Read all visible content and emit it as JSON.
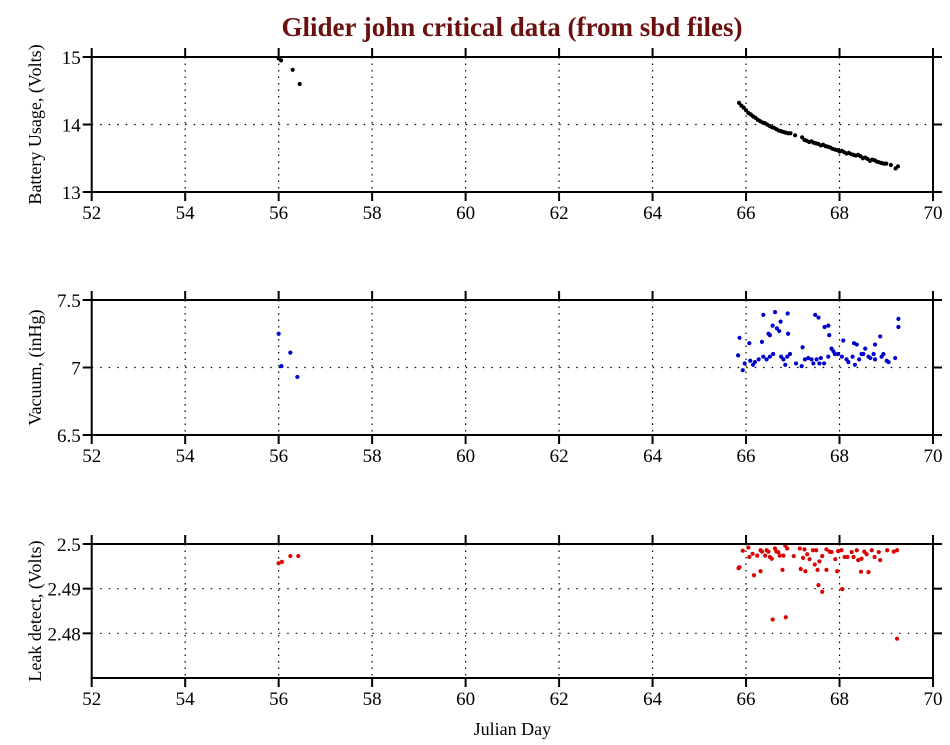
{
  "chart_data": [
    {
      "type": "scatter",
      "title": "Glider john critical data (from sbd files)",
      "title_color": "#6b0f0f",
      "ylabel": "Battery Usage, (Volts)",
      "xlabel": "",
      "xlim": [
        52,
        70
      ],
      "ylim": [
        13,
        15
      ],
      "xticks": [
        52,
        54,
        56,
        58,
        60,
        62,
        64,
        66,
        68,
        70
      ],
      "yticks": [
        13,
        14,
        15
      ],
      "ytick_labels": [
        "13",
        "14",
        "15"
      ],
      "grid": true,
      "color": "#000000",
      "points": [
        [
          56.0,
          14.98
        ],
        [
          56.05,
          14.95
        ],
        [
          56.3,
          14.81
        ],
        [
          56.45,
          14.6
        ],
        [
          65.85,
          14.32
        ],
        [
          65.9,
          14.28
        ],
        [
          65.95,
          14.25
        ],
        [
          66.0,
          14.21
        ],
        [
          66.05,
          14.17
        ],
        [
          66.1,
          14.15
        ],
        [
          66.15,
          14.12
        ],
        [
          66.2,
          14.1
        ],
        [
          66.25,
          14.07
        ],
        [
          66.3,
          14.05
        ],
        [
          66.35,
          14.03
        ],
        [
          66.4,
          14.02
        ],
        [
          66.45,
          14.0
        ],
        [
          66.5,
          13.98
        ],
        [
          66.55,
          13.96
        ],
        [
          66.6,
          13.95
        ],
        [
          66.65,
          13.93
        ],
        [
          66.7,
          13.91
        ],
        [
          66.75,
          13.9
        ],
        [
          66.8,
          13.89
        ],
        [
          66.85,
          13.88
        ],
        [
          66.9,
          13.87
        ],
        [
          66.95,
          13.87
        ],
        [
          67.05,
          13.84
        ],
        [
          67.2,
          13.81
        ],
        [
          67.25,
          13.77
        ],
        [
          67.3,
          13.76
        ],
        [
          67.35,
          13.74
        ],
        [
          67.4,
          13.75
        ],
        [
          67.45,
          13.73
        ],
        [
          67.5,
          13.72
        ],
        [
          67.55,
          13.71
        ],
        [
          67.6,
          13.69
        ],
        [
          67.65,
          13.7
        ],
        [
          67.7,
          13.68
        ],
        [
          67.75,
          13.67
        ],
        [
          67.8,
          13.66
        ],
        [
          67.85,
          13.64
        ],
        [
          67.9,
          13.63
        ],
        [
          67.95,
          13.62
        ],
        [
          68.0,
          13.6
        ],
        [
          68.05,
          13.61
        ],
        [
          68.1,
          13.59
        ],
        [
          68.15,
          13.57
        ],
        [
          68.2,
          13.58
        ],
        [
          68.25,
          13.56
        ],
        [
          68.3,
          13.55
        ],
        [
          68.35,
          13.54
        ],
        [
          68.4,
          13.55
        ],
        [
          68.45,
          13.53
        ],
        [
          68.5,
          13.5
        ],
        [
          68.55,
          13.51
        ],
        [
          68.6,
          13.49
        ],
        [
          68.65,
          13.46
        ],
        [
          68.7,
          13.48
        ],
        [
          68.75,
          13.47
        ],
        [
          68.8,
          13.45
        ],
        [
          68.85,
          13.44
        ],
        [
          68.9,
          13.43
        ],
        [
          68.95,
          13.42
        ],
        [
          69.0,
          13.42
        ],
        [
          69.1,
          13.4
        ],
        [
          69.2,
          13.35
        ],
        [
          69.25,
          13.38
        ]
      ]
    },
    {
      "type": "scatter",
      "ylabel": "Vacuum, (inHg)",
      "xlabel": "",
      "xlim": [
        52,
        70
      ],
      "ylim": [
        6.5,
        7.5
      ],
      "xticks": [
        52,
        54,
        56,
        58,
        60,
        62,
        64,
        66,
        68,
        70
      ],
      "yticks": [
        6.5,
        7,
        7.5
      ],
      "ytick_labels": [
        "6.5",
        "7",
        "7.5"
      ],
      "grid": true,
      "color": "#0000cc",
      "points": [
        [
          56.0,
          7.25
        ],
        [
          56.06,
          7.01
        ],
        [
          56.25,
          7.11
        ],
        [
          56.4,
          6.93
        ],
        [
          65.86,
          7.22
        ],
        [
          65.83,
          7.09
        ],
        [
          65.93,
          6.98
        ],
        [
          65.97,
          7.03
        ],
        [
          66.07,
          7.18
        ],
        [
          66.09,
          7.05
        ],
        [
          66.15,
          7.02
        ],
        [
          66.19,
          7.04
        ],
        [
          66.27,
          7.06
        ],
        [
          66.34,
          7.19
        ],
        [
          66.37,
          7.08
        ],
        [
          66.37,
          7.39
        ],
        [
          66.44,
          7.06
        ],
        [
          66.48,
          7.25
        ],
        [
          66.51,
          7.24
        ],
        [
          66.51,
          7.08
        ],
        [
          66.57,
          7.31
        ],
        [
          66.58,
          7.1
        ],
        [
          66.62,
          7.41
        ],
        [
          66.66,
          7.29
        ],
        [
          66.71,
          7.27
        ],
        [
          66.74,
          7.34
        ],
        [
          66.75,
          7.08
        ],
        [
          66.8,
          7.06
        ],
        [
          66.84,
          7.02
        ],
        [
          66.88,
          7.08
        ],
        [
          66.89,
          7.4
        ],
        [
          66.9,
          7.25
        ],
        [
          66.94,
          7.1
        ],
        [
          67.07,
          7.03
        ],
        [
          67.19,
          7.01
        ],
        [
          67.21,
          7.15
        ],
        [
          67.26,
          7.06
        ],
        [
          67.33,
          7.07
        ],
        [
          67.4,
          7.06
        ],
        [
          67.44,
          7.03
        ],
        [
          67.48,
          7.39
        ],
        [
          67.55,
          7.37
        ],
        [
          67.51,
          7.06
        ],
        [
          67.6,
          7.07
        ],
        [
          67.57,
          7.03
        ],
        [
          67.67,
          7.03
        ],
        [
          67.68,
          7.3
        ],
        [
          67.76,
          7.31
        ],
        [
          67.76,
          7.08
        ],
        [
          67.78,
          7.24
        ],
        [
          67.83,
          7.14
        ],
        [
          67.87,
          7.12
        ],
        [
          67.9,
          7.1
        ],
        [
          67.97,
          7.1
        ],
        [
          68.05,
          7.08
        ],
        [
          68.08,
          7.2
        ],
        [
          68.15,
          7.06
        ],
        [
          68.19,
          7.04
        ],
        [
          68.28,
          7.08
        ],
        [
          68.31,
          7.18
        ],
        [
          68.33,
          7.02
        ],
        [
          68.37,
          7.17
        ],
        [
          68.42,
          7.06
        ],
        [
          68.47,
          7.1
        ],
        [
          68.51,
          7.1
        ],
        [
          68.55,
          7.14
        ],
        [
          68.62,
          7.08
        ],
        [
          68.66,
          7.07
        ],
        [
          68.73,
          7.1
        ],
        [
          68.76,
          7.06
        ],
        [
          68.76,
          7.17
        ],
        [
          68.87,
          7.23
        ],
        [
          68.9,
          7.08
        ],
        [
          68.94,
          7.1
        ],
        [
          69.01,
          7.05
        ],
        [
          69.05,
          7.04
        ],
        [
          69.19,
          7.07
        ],
        [
          69.26,
          7.36
        ],
        [
          69.26,
          7.3
        ]
      ]
    },
    {
      "type": "scatter",
      "ylabel": "Leak detect, (Volts)",
      "xlabel": "Julian Day",
      "xlim": [
        52,
        70
      ],
      "ylim": [
        2.47,
        2.5
      ],
      "xticks": [
        52,
        54,
        56,
        58,
        60,
        62,
        64,
        66,
        68,
        70
      ],
      "yticks": [
        2.48,
        2.49,
        2.5
      ],
      "ytick_labels": [
        "2.48",
        "2.49",
        "2.5"
      ],
      "grid": true,
      "color": "#dd0000",
      "points": [
        [
          56.0,
          2.4957
        ],
        [
          56.07,
          2.496
        ],
        [
          56.25,
          2.4973
        ],
        [
          56.42,
          2.4973
        ],
        [
          65.84,
          2.4946
        ],
        [
          65.86,
          2.4948
        ],
        [
          65.93,
          2.4985
        ],
        [
          66.05,
          2.4992
        ],
        [
          66.07,
          2.4971
        ],
        [
          66.14,
          2.4978
        ],
        [
          66.17,
          2.493
        ],
        [
          66.24,
          2.4974
        ],
        [
          66.31,
          2.4986
        ],
        [
          66.31,
          2.4939
        ],
        [
          66.34,
          2.4983
        ],
        [
          66.41,
          2.4974
        ],
        [
          66.44,
          2.4986
        ],
        [
          66.48,
          2.4983
        ],
        [
          66.51,
          2.4971
        ],
        [
          66.55,
          2.4967
        ],
        [
          66.57,
          2.4831
        ],
        [
          66.62,
          2.499
        ],
        [
          66.65,
          2.4983
        ],
        [
          66.69,
          2.4982
        ],
        [
          66.72,
          2.4974
        ],
        [
          66.78,
          2.4942
        ],
        [
          66.8,
          2.4974
        ],
        [
          66.84,
          2.4996
        ],
        [
          66.85,
          2.4836
        ],
        [
          66.88,
          2.499
        ],
        [
          67.02,
          2.4973
        ],
        [
          67.15,
          2.499
        ],
        [
          67.17,
          2.4944
        ],
        [
          67.22,
          2.4969
        ],
        [
          67.25,
          2.4988
        ],
        [
          67.27,
          2.4939
        ],
        [
          67.31,
          2.4977
        ],
        [
          67.36,
          2.4966
        ],
        [
          67.43,
          2.4986
        ],
        [
          67.47,
          2.4954
        ],
        [
          67.5,
          2.4986
        ],
        [
          67.53,
          2.4942
        ],
        [
          67.55,
          2.4908
        ],
        [
          67.57,
          2.4961
        ],
        [
          67.63,
          2.4893
        ],
        [
          67.63,
          2.4973
        ],
        [
          67.72,
          2.4988
        ],
        [
          67.72,
          2.4942
        ],
        [
          67.79,
          2.4983
        ],
        [
          67.83,
          2.4982
        ],
        [
          67.91,
          2.4966
        ],
        [
          67.95,
          2.4939
        ],
        [
          67.97,
          2.4984
        ],
        [
          68.04,
          2.4986
        ],
        [
          68.06,
          2.4899
        ],
        [
          68.11,
          2.4971
        ],
        [
          68.17,
          2.4971
        ],
        [
          68.26,
          2.4982
        ],
        [
          68.3,
          2.4971
        ],
        [
          68.37,
          2.4986
        ],
        [
          68.4,
          2.4964
        ],
        [
          68.46,
          2.4938
        ],
        [
          68.47,
          2.4967
        ],
        [
          68.53,
          2.4983
        ],
        [
          68.58,
          2.4977
        ],
        [
          68.62,
          2.4937
        ],
        [
          68.69,
          2.4986
        ],
        [
          68.75,
          2.4971
        ],
        [
          68.84,
          2.4982
        ],
        [
          68.87,
          2.4964
        ],
        [
          69.02,
          2.4986
        ],
        [
          69.16,
          2.4983
        ],
        [
          69.23,
          2.4986
        ],
        [
          69.23,
          2.4788
        ]
      ]
    }
  ]
}
